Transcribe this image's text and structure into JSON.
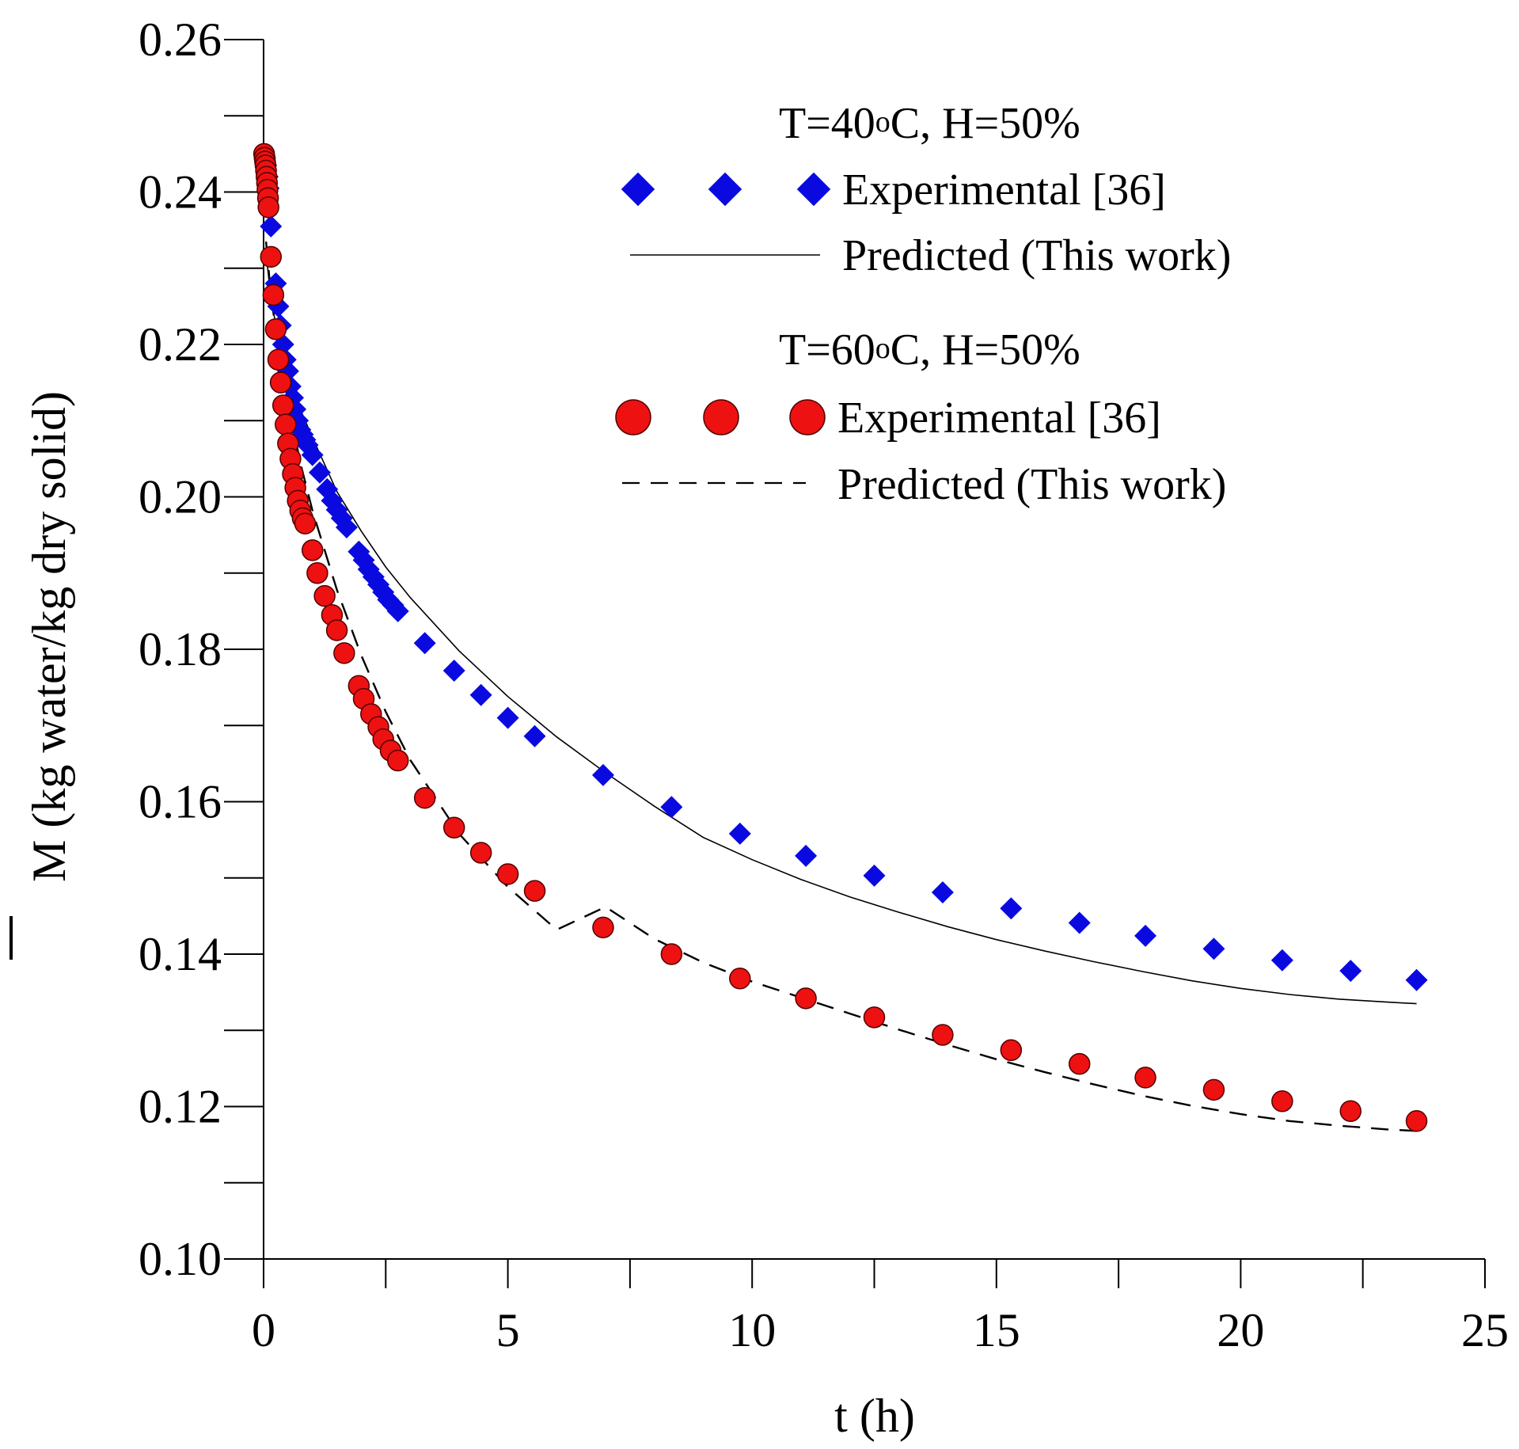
{
  "chart_data": {
    "type": "scatter",
    "title": "",
    "xlabel": "t (h)",
    "ylabel_symbol": "M",
    "ylabel_units": " (kg water/kg dry solid)",
    "xlim": [
      0,
      25
    ],
    "ylim": [
      0.1,
      0.26
    ],
    "x_ticks": [
      0,
      5,
      10,
      15,
      20,
      25
    ],
    "x_tick_labels": [
      "0",
      "5",
      "10",
      "15",
      "20",
      "25"
    ],
    "y_ticks": [
      0.1,
      0.12,
      0.14,
      0.16,
      0.18,
      0.2,
      0.22,
      0.24,
      0.26
    ],
    "y_tick_labels": [
      "0.10",
      "0.12",
      "0.14",
      "0.16",
      "0.18",
      "0.20",
      "0.22",
      "0.24",
      "0.26"
    ],
    "grid": false,
    "legend_position": "top-right",
    "groups": [
      {
        "header_prefix": "T=40",
        "header_degree": "o",
        "header_suffix": "C, H=50%",
        "experimental_label": "Experimental [36]",
        "predicted_label": "Predicted (This work)",
        "marker": "diamond",
        "marker_color": "#0a0ae0",
        "line_style": "solid"
      },
      {
        "header_prefix": "T=60",
        "header_degree": "o",
        "header_suffix": "C, H=50%",
        "experimental_label": "Experimental [36]",
        "predicted_label": "Predicted (This work)",
        "marker": "circle",
        "marker_color": "#ee1111",
        "line_style": "dashed"
      }
    ],
    "series": [
      {
        "name": "T=40oC, H=50% Experimental [36]",
        "kind": "points",
        "marker": "diamond",
        "color": "#0a0ae0",
        "x": [
          0.01,
          0.03,
          0.05,
          0.08,
          0.1,
          0.15,
          0.25,
          0.3,
          0.35,
          0.4,
          0.45,
          0.5,
          0.55,
          0.6,
          0.65,
          0.7,
          0.75,
          0.8,
          0.85,
          0.9,
          1.0,
          1.15,
          1.3,
          1.4,
          1.5,
          1.6,
          1.7,
          1.95,
          2.05,
          2.15,
          2.25,
          2.35,
          2.45,
          2.55,
          2.65,
          2.75,
          3.3,
          3.9,
          4.45,
          5.0,
          5.55,
          6.95,
          8.35,
          9.75,
          11.1,
          12.5,
          13.9,
          15.3,
          16.7,
          18.05,
          19.45,
          20.85,
          22.25,
          23.6
        ],
        "y": [
          0.245,
          0.2445,
          0.2435,
          0.242,
          0.2405,
          0.2355,
          0.228,
          0.225,
          0.2225,
          0.22,
          0.218,
          0.2165,
          0.2145,
          0.213,
          0.2115,
          0.21,
          0.2088,
          0.2082,
          0.2075,
          0.2068,
          0.2055,
          0.2032,
          0.201,
          0.1995,
          0.1983,
          0.1972,
          0.196,
          0.1928,
          0.1917,
          0.1905,
          0.1895,
          0.1885,
          0.1875,
          0.1865,
          0.1858,
          0.185,
          0.1808,
          0.1772,
          0.174,
          0.171,
          0.1686,
          0.1635,
          0.1593,
          0.1558,
          0.1529,
          0.1503,
          0.1481,
          0.146,
          0.1441,
          0.1424,
          0.1407,
          0.1392,
          0.1378,
          0.1366
        ]
      },
      {
        "name": "T=40oC, H=50% Predicted (This work)",
        "kind": "line",
        "style": "solid",
        "color": "#000000",
        "x": [
          0.05,
          0.15,
          0.3,
          0.5,
          0.75,
          1.0,
          1.5,
          2.0,
          2.5,
          3.0,
          4.0,
          5.0,
          6.0,
          7.0,
          8.0,
          9.0,
          10.0,
          11.0,
          12.0,
          13.0,
          14.0,
          15.0,
          16.0,
          17.0,
          18.0,
          19.0,
          20.0,
          21.0,
          22.0,
          23.0,
          23.6
        ],
        "y": [
          0.232,
          0.226,
          0.221,
          0.2162,
          0.2115,
          0.2078,
          0.2007,
          0.1955,
          0.1908,
          0.1868,
          0.1798,
          0.1738,
          0.1685,
          0.1638,
          0.1594,
          0.1553,
          0.1524,
          0.1498,
          0.1475,
          0.1455,
          0.1436,
          0.1419,
          0.1404,
          0.139,
          0.1377,
          0.1365,
          0.1355,
          0.1347,
          0.1341,
          0.1337,
          0.1335
        ]
      },
      {
        "name": "T=60oC, H=50% Experimental [36]",
        "kind": "points",
        "marker": "circle",
        "color": "#ee1111",
        "x": [
          0.01,
          0.02,
          0.03,
          0.04,
          0.05,
          0.06,
          0.07,
          0.08,
          0.09,
          0.1,
          0.15,
          0.2,
          0.25,
          0.3,
          0.35,
          0.4,
          0.45,
          0.5,
          0.55,
          0.6,
          0.65,
          0.7,
          0.75,
          0.8,
          0.85,
          1.0,
          1.1,
          1.25,
          1.4,
          1.5,
          1.65,
          1.95,
          2.05,
          2.2,
          2.35,
          2.45,
          2.6,
          2.75,
          3.3,
          3.9,
          4.45,
          5.0,
          5.55,
          6.95,
          8.35,
          9.75,
          11.1,
          12.5,
          13.9,
          15.3,
          16.7,
          18.05,
          19.45,
          20.85,
          22.25,
          23.6
        ],
        "y": [
          0.245,
          0.2445,
          0.244,
          0.2435,
          0.2428,
          0.242,
          0.2412,
          0.2403,
          0.2392,
          0.238,
          0.2315,
          0.2265,
          0.222,
          0.218,
          0.215,
          0.212,
          0.2095,
          0.207,
          0.205,
          0.203,
          0.2012,
          0.1995,
          0.1982,
          0.1972,
          0.1965,
          0.193,
          0.19,
          0.187,
          0.1845,
          0.1825,
          0.1795,
          0.1752,
          0.1735,
          0.1715,
          0.1698,
          0.1682,
          0.1667,
          0.1654,
          0.1605,
          0.1566,
          0.1533,
          0.1505,
          0.1483,
          0.1435,
          0.14,
          0.1368,
          0.1342,
          0.1317,
          0.1294,
          0.1274,
          0.1256,
          0.1238,
          0.1222,
          0.1207,
          0.1194,
          0.1181
        ]
      },
      {
        "name": "T=60oC, H=50% Predicted (This work)",
        "kind": "line",
        "style": "dashed",
        "color": "#000000",
        "x": [
          0.05,
          0.15,
          0.3,
          0.5,
          0.75,
          1.0,
          1.5,
          2.0,
          2.5,
          3.0,
          4.0,
          5.0,
          6.0,
          7.0,
          8.0,
          9.0,
          10.0,
          11.0,
          12.0,
          13.0,
          14.0,
          15.0,
          16.0,
          17.0,
          18.0,
          19.0,
          20.0,
          21.0,
          22.0,
          23.0,
          23.6
        ],
        "y": [
          0.2335,
          0.2265,
          0.2195,
          0.2125,
          0.2045,
          0.1982,
          0.1878,
          0.1792,
          0.1718,
          0.1655,
          0.1558,
          0.1488,
          0.1432,
          0.1462,
          0.142,
          0.1389,
          0.1364,
          0.1343,
          0.1322,
          0.1301,
          0.1281,
          0.1262,
          0.1245,
          0.1229,
          0.1214,
          0.1201,
          0.119,
          0.1181,
          0.1175,
          0.117,
          0.1168
        ]
      }
    ]
  }
}
